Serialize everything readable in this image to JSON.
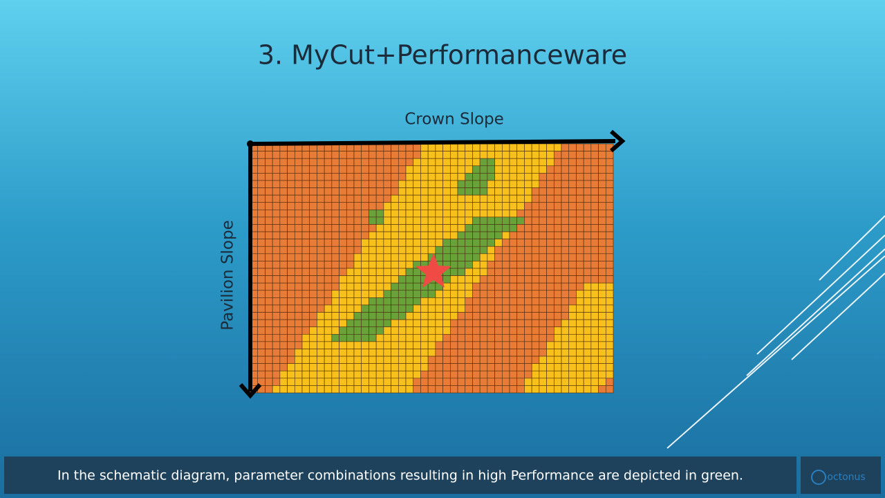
{
  "header": {
    "title": "3. MyCut+Performanceware"
  },
  "diagram": {
    "x_axis_label": "Crown Slope",
    "y_axis_label": "Pavilion Slope"
  },
  "caption": "In the schematic diagram, parameter combinations resulting in high Performance are depicted in green.",
  "logo": {
    "text": "octonus"
  }
}
